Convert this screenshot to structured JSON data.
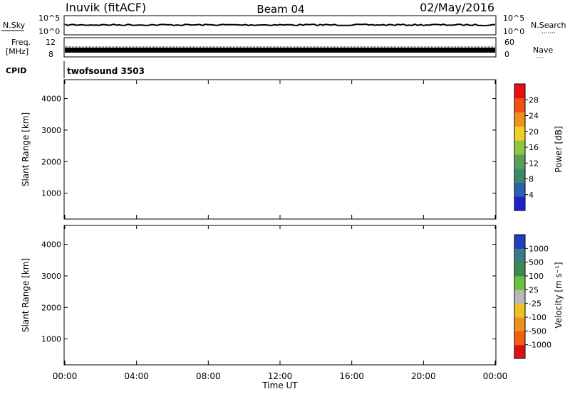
{
  "header": {
    "station": "Inuvik (fitACF)",
    "beam": "Beam 04",
    "date": "02/May/2016"
  },
  "summary_panels": {
    "nsky_label": "N.Sky",
    "nsky_ticks": [
      "10^5",
      "10^0"
    ],
    "nsearch_label": "N.Search",
    "nsearch_ticks": [
      "10^5",
      "10^0"
    ],
    "freq_label_1": "Freq.",
    "freq_label_2": "[MHz]",
    "freq_ticks": [
      "12",
      "8"
    ],
    "nave_label": "Nave",
    "nave_ticks": [
      "60",
      "0"
    ],
    "cpid_label": "CPID",
    "cpid_value": "twofsound 3503"
  },
  "chart_data": [
    {
      "type": "heatmap",
      "name": "power",
      "ylabel": "Slant Range [km]",
      "yticks": [
        "4000",
        "3000",
        "2000",
        "1000"
      ],
      "ylim": [
        180,
        4600
      ],
      "colorbar_label": "Power [dB]",
      "colorbar_ticks": [
        "28",
        "24",
        "20",
        "16",
        "12",
        "8",
        "4"
      ],
      "colors": [
        "#2020d0",
        "#2f5fb0",
        "#3c8a6a",
        "#5aa05a",
        "#8cc83c",
        "#f0d020",
        "#f09020",
        "#f05010",
        "#e81010"
      ]
    },
    {
      "type": "heatmap",
      "name": "velocity",
      "ylabel": "Slant Range [km]",
      "yticks": [
        "4000",
        "3000",
        "2000",
        "1000"
      ],
      "ylim": [
        180,
        4600
      ],
      "colorbar_label": "Velocity [m s⁻¹]",
      "colorbar_ticks": [
        "1000",
        "500",
        "100",
        "25",
        "-25",
        "-100",
        "-500",
        "-1000"
      ],
      "colors": [
        "#2040c0",
        "#3c7a8a",
        "#3c8a50",
        "#6cc040",
        "#b8b8b8",
        "#f0c020",
        "#f09020",
        "#f06010",
        "#e01010"
      ],
      "xlabel": "Time UT",
      "xticks": [
        "00:00",
        "04:00",
        "08:00",
        "12:00",
        "16:00",
        "20:00",
        "00:00"
      ]
    }
  ]
}
